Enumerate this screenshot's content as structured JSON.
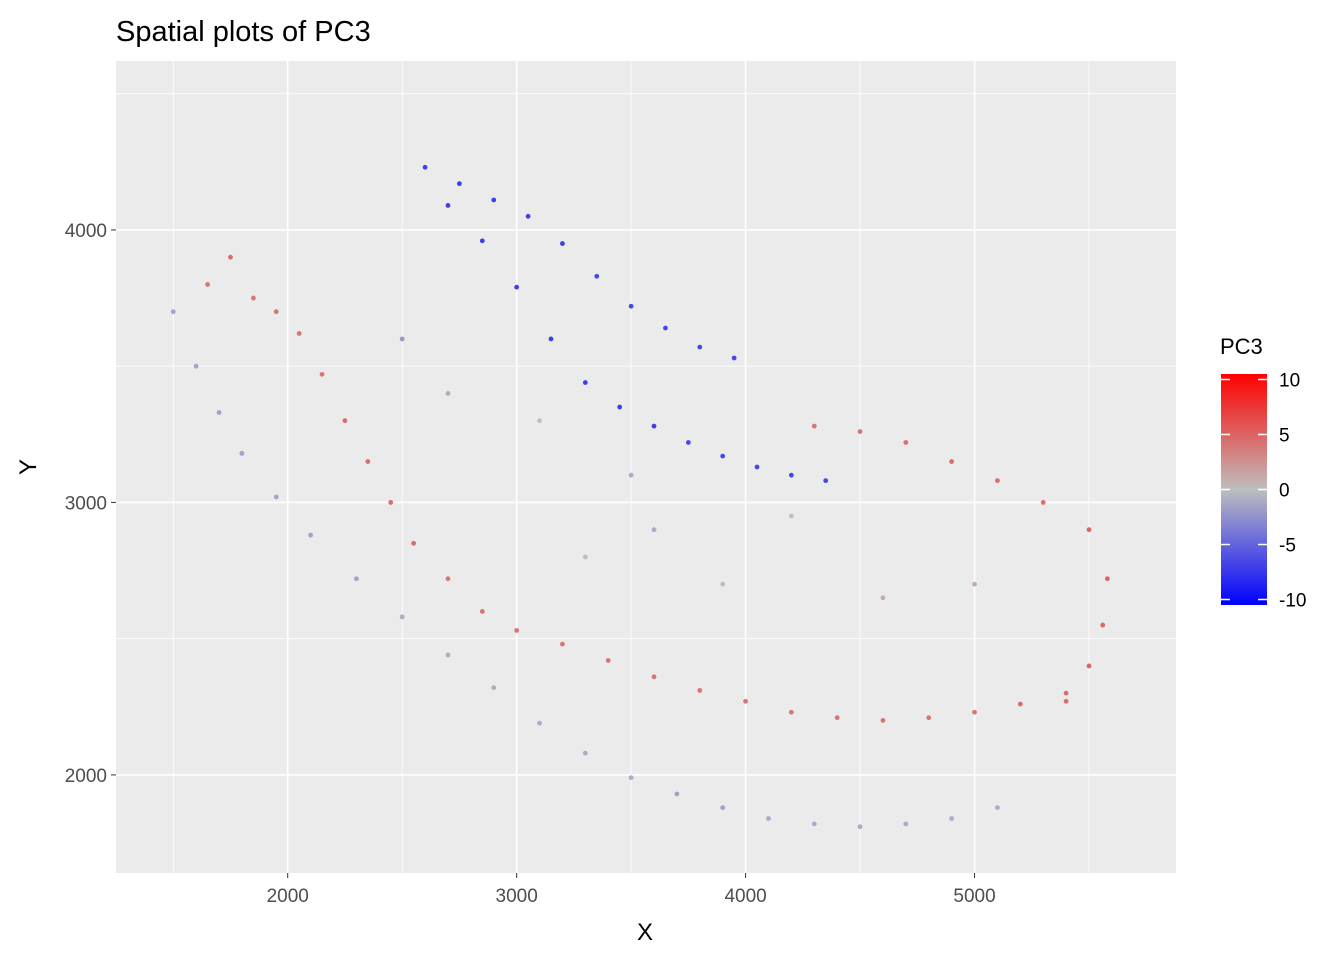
{
  "chart_data": {
    "type": "scatter",
    "title": "Spatial plots of PC3",
    "xlabel": "X",
    "ylabel": "Y",
    "xlim": [
      1250,
      5880
    ],
    "ylim": [
      1640,
      4620
    ],
    "x_ticks": [
      2000,
      3000,
      4000,
      5000
    ],
    "y_ticks": [
      2000,
      3000,
      4000
    ],
    "x_tick_labels": [
      "2000",
      "3000",
      "4000",
      "5000"
    ],
    "y_tick_labels": [
      "2000",
      "3000",
      "4000"
    ],
    "grid": true,
    "panel_background": "#ebebeb",
    "gridline_color": "#ffffff",
    "legend": {
      "title": "PC3",
      "placement": "right",
      "type": "colorbar",
      "ticks": [
        10,
        5,
        0,
        -5,
        -10
      ],
      "tick_labels": [
        "10",
        "5",
        "0",
        "-5",
        "-10"
      ],
      "range": [
        -10.5,
        10.5
      ],
      "low_color": "#0000ff",
      "mid_color": "#bebebe",
      "high_color": "#ff0000"
    },
    "point_color_by": "PC3",
    "point_count_approx": 5000,
    "series": [
      {
        "name": "PC3",
        "x": [
          2600,
          2750,
          2900,
          3050,
          3200,
          3350,
          3500,
          3650,
          3800,
          3950,
          2700,
          2850,
          3000,
          3150,
          3300,
          3450,
          3600,
          3750,
          3900,
          4050,
          4200,
          4350,
          1650,
          1750,
          1850,
          1950,
          2050,
          2150,
          2250,
          2350,
          2450,
          2550,
          2700,
          2850,
          3000,
          3200,
          3400,
          3600,
          3800,
          4000,
          4200,
          4400,
          4600,
          4800,
          5000,
          5200,
          5400,
          4300,
          4500,
          4700,
          4900,
          5100,
          5300,
          5500,
          5580,
          5560,
          5500,
          5400,
          1500,
          1600,
          1700,
          1800,
          1950,
          2100,
          2300,
          2500,
          2700,
          2900,
          3100,
          3300,
          3500,
          3700,
          3900,
          4100,
          4300,
          4500,
          4700,
          4900,
          5100,
          3300,
          3600,
          3900,
          4200,
          4600,
          5000,
          2500,
          2700,
          3100,
          3500
        ],
        "y": [
          4230,
          4170,
          4110,
          4050,
          3950,
          3830,
          3720,
          3640,
          3570,
          3530,
          4090,
          3960,
          3790,
          3600,
          3440,
          3350,
          3280,
          3220,
          3170,
          3130,
          3100,
          3080,
          3800,
          3900,
          3750,
          3700,
          3620,
          3470,
          3300,
          3150,
          3000,
          2850,
          2720,
          2600,
          2530,
          2480,
          2420,
          2360,
          2310,
          2270,
          2230,
          2210,
          2200,
          2210,
          2230,
          2260,
          2300,
          3280,
          3260,
          3220,
          3150,
          3080,
          3000,
          2900,
          2720,
          2550,
          2400,
          2270,
          3700,
          3500,
          3330,
          3180,
          3020,
          2880,
          2720,
          2580,
          2440,
          2320,
          2190,
          2080,
          1990,
          1930,
          1880,
          1840,
          1820,
          1810,
          1820,
          1840,
          1880,
          2800,
          2900,
          2700,
          2950,
          2650,
          2700,
          3600,
          3400,
          3300,
          3100
        ],
        "values": [
          -7,
          -7,
          -7,
          -7,
          -7,
          -6.5,
          -6.5,
          -6.5,
          -6.5,
          -6.5,
          -7,
          -7,
          -7,
          -7,
          -7,
          -7,
          -7,
          -6.5,
          -6.5,
          -6.5,
          -6.5,
          -6.5,
          4,
          4.5,
          4,
          4,
          4,
          4,
          4.5,
          4.5,
          4.5,
          4.5,
          4,
          4,
          4,
          4,
          4,
          4,
          4,
          4,
          4,
          4,
          4,
          4,
          4,
          4.5,
          4.5,
          4,
          4,
          4.5,
          4.5,
          4.5,
          4.5,
          5,
          5,
          5,
          5,
          4.5,
          -1.5,
          -1.5,
          -1.5,
          -1.5,
          -1.5,
          -1.5,
          -1.5,
          -1,
          -1,
          -1,
          -1,
          -1,
          -1,
          -1.5,
          -1.5,
          -1,
          -1,
          -1,
          -1,
          -1,
          -1,
          0,
          -1,
          0,
          0,
          1,
          1,
          -2,
          -1,
          0,
          -1
        ]
      }
    ]
  }
}
